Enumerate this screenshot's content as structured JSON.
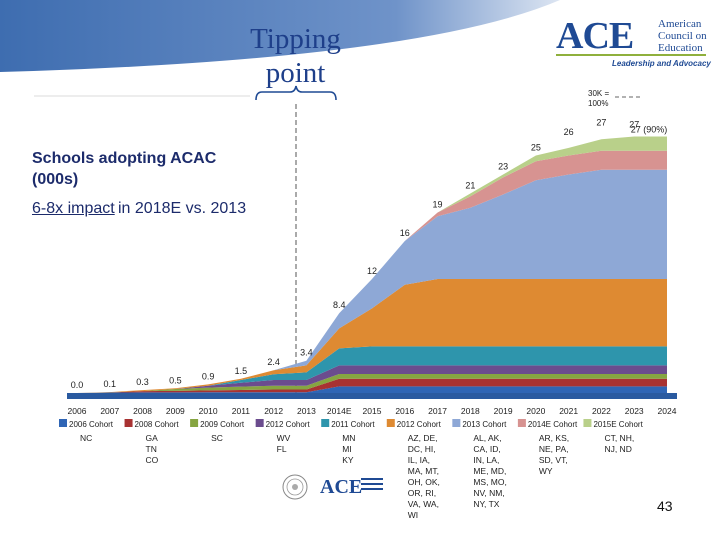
{
  "slide": {
    "title": "Tipping point",
    "heading_line1": "Schools adopting ACAC",
    "heading_line2": "(000s)",
    "subheading_underlined": "6-8x impact",
    "subheading_rest": " in 2018E vs. 2013",
    "page_number": "43",
    "cap_note_line1": "30K =",
    "cap_note_line2": "100%"
  },
  "logo": {
    "mark": "ACE",
    "name_line1": "American",
    "name_line2": "Council on",
    "name_line3": "Education",
    "tagline": "Leadership and Advocacy"
  },
  "chart_data": {
    "type": "area",
    "title": "Schools adopting ACAC (000s)",
    "xlabel": "",
    "ylabel": "",
    "ylim": [
      0,
      30
    ],
    "grid": false,
    "tipping_point_year": "2013",
    "x": [
      "2006",
      "2007",
      "2008",
      "2009",
      "2010",
      "2011",
      "2012",
      "2013",
      "2014E",
      "2015",
      "2016",
      "2017",
      "2018",
      "2019",
      "2020",
      "2021",
      "2022",
      "2023",
      "2024"
    ],
    "totals": [
      0.0,
      0.1,
      0.3,
      0.5,
      0.9,
      1.5,
      2.4,
      3.4,
      8.4,
      12,
      16,
      19,
      21,
      23,
      25,
      26,
      27,
      27,
      27
    ],
    "total_labels": [
      "0.0",
      "0.1",
      "0.3",
      "0.5",
      "0.9",
      "1.5",
      "2.4",
      "3.4",
      "8.4",
      "12",
      "16",
      "19",
      "21",
      "23",
      "25",
      "26",
      "27",
      "27",
      "27 (90%)"
    ],
    "series": [
      {
        "name": "2006 Cohort",
        "color": "#2f65b5",
        "values": [
          0,
          0.05,
          0.06,
          0.06,
          0.07,
          0.07,
          0.07,
          0.07,
          0.7,
          0.7,
          0.7,
          0.7,
          0.7,
          0.7,
          0.7,
          0.7,
          0.7,
          0.7,
          0.7
        ]
      },
      {
        "name": "2008 Cohort",
        "color": "#a83232",
        "values": [
          0,
          0,
          0.14,
          0.16,
          0.2,
          0.25,
          0.3,
          0.3,
          0.8,
          0.8,
          0.8,
          0.8,
          0.8,
          0.8,
          0.8,
          0.8,
          0.8,
          0.8,
          0.8
        ]
      },
      {
        "name": "2009 Cohort",
        "color": "#86a541",
        "values": [
          0,
          0,
          0,
          0.2,
          0.3,
          0.35,
          0.4,
          0.4,
          0.5,
          0.5,
          0.5,
          0.5,
          0.5,
          0.5,
          0.5,
          0.5,
          0.5,
          0.5,
          0.5
        ]
      },
      {
        "name": "2012 Cohort",
        "color": "#6b4c8e",
        "values": [
          0,
          0,
          0,
          0,
          0.2,
          0.4,
          0.6,
          0.6,
          0.9,
          0.9,
          0.9,
          0.9,
          0.9,
          0.9,
          0.9,
          0.9,
          0.9,
          0.9,
          0.9
        ]
      },
      {
        "name": "2011 Cohort",
        "color": "#2e95ac",
        "values": [
          0,
          0,
          0,
          0,
          0,
          0.3,
          0.6,
          0.8,
          1.8,
          2.0,
          2.0,
          2.0,
          2.0,
          2.0,
          2.0,
          2.0,
          2.0,
          2.0,
          2.0
        ]
      },
      {
        "name": "2012 Cohort",
        "color": "#de8a32",
        "values": [
          0,
          0.05,
          0.1,
          0.08,
          0.13,
          0.13,
          0.43,
          0.73,
          2.1,
          4.0,
          6.5,
          7.1,
          7.1,
          7.1,
          7.1,
          7.1,
          7.1,
          7.1,
          7.1
        ]
      },
      {
        "name": "2013 Cohort",
        "color": "#8ea8d6",
        "values": [
          0,
          0,
          0,
          0,
          0,
          0,
          0,
          0.5,
          1.6,
          3.1,
          4.6,
          6.6,
          7.5,
          8.9,
          10.4,
          11.0,
          11.5,
          11.5,
          11.5
        ]
      },
      {
        "name": "2014E Cohort",
        "color": "#d79391",
        "values": [
          0,
          0,
          0,
          0,
          0,
          0,
          0,
          0,
          0,
          0,
          0,
          0.4,
          1.2,
          1.8,
          2.0,
          2.0,
          2.0,
          2.0,
          2.0
        ]
      },
      {
        "name": "2015E Cohort",
        "color": "#b9d08a",
        "values": [
          0,
          0,
          0,
          0,
          0,
          0,
          0,
          0,
          0,
          0,
          0,
          0,
          0.3,
          0.3,
          0.6,
          0.8,
          1.2,
          1.5,
          1.5
        ]
      }
    ],
    "legend": [
      "2006 Cohort",
      "2008 Cohort",
      "2009 Cohort",
      "2012 Cohort",
      "2011 Cohort",
      "2012 Cohort",
      "2013 Cohort",
      "2014E Cohort",
      "2015E Cohort"
    ]
  },
  "state_groups": [
    {
      "lines": [
        "NC"
      ]
    },
    {
      "lines": [
        "GA",
        "TN",
        "CO"
      ]
    },
    {
      "lines": [
        "SC"
      ]
    },
    {
      "lines": [
        "WV",
        "FL"
      ]
    },
    {
      "lines": [
        "MN",
        "MI",
        "KY"
      ]
    },
    {
      "lines": [
        "AZ, DE,",
        "DC, HI,",
        "IL, IA,",
        "MA, MT,",
        "OH, OK,",
        "OR, RI,",
        "VA, WA,",
        "WI"
      ]
    },
    {
      "lines": [
        "AL, AK,",
        "CA, ID,",
        "IN, LA,",
        "ME, MD,",
        "MS, MO,",
        "NV, NM,",
        "NY, TX"
      ]
    },
    {
      "lines": [
        "AR, KS,",
        "NE, PA,",
        "SD, VT,",
        "WY"
      ]
    },
    {
      "lines": [
        "CT, NH,",
        "NJ, ND"
      ]
    }
  ],
  "colors": {
    "band": "#3e6db0",
    "band_top": "#2b5597",
    "title": "#1e3f8a",
    "heading": "#1c2b6b",
    "axis_bar": "#2a5aa0"
  },
  "partner_seal": {
    "name": "seal-icon"
  }
}
